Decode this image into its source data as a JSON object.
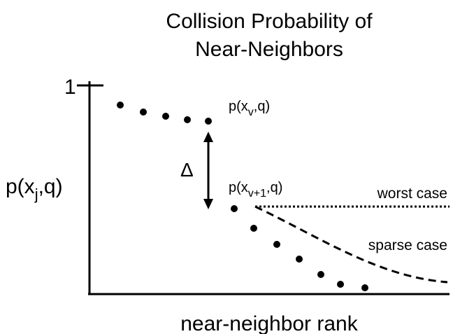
{
  "title": [
    "Collision Probability of",
    "Near-Neighbors"
  ],
  "y_axis": {
    "label": {
      "base": "p(x",
      "sub": "j",
      "rest": ",q)"
    },
    "tick": "1"
  },
  "x_axis": {
    "label": "near-neighbor rank"
  },
  "annotations": {
    "upper_point": {
      "base": "p(x",
      "sub": "v",
      "rest": ",q)"
    },
    "lower_point": {
      "base": "p(x",
      "sub": "v+1",
      "rest": ",q)"
    },
    "gap": "Δ",
    "worst_case": "worst case",
    "sparse_case": "sparse case"
  }
}
